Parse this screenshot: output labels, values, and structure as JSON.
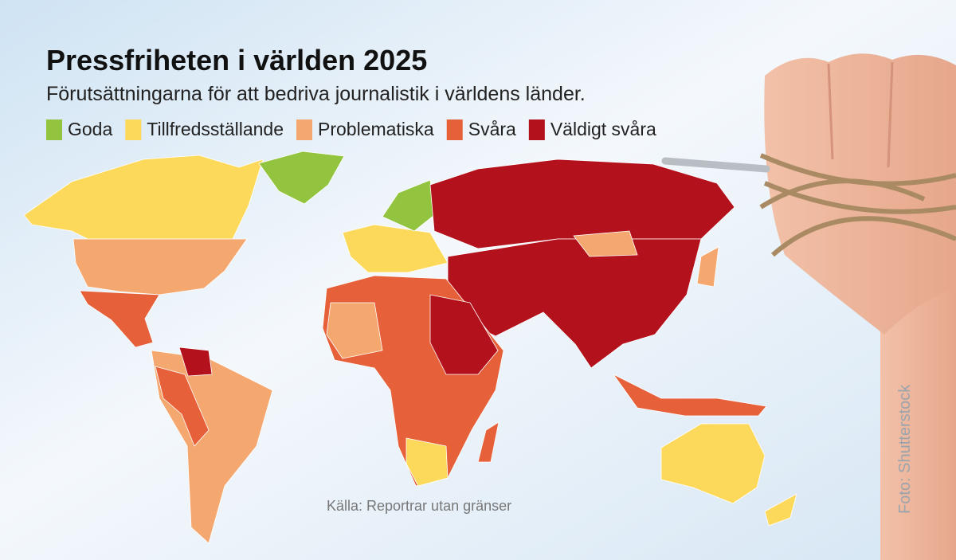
{
  "header": {
    "title": "Pressfriheten i världen 2025",
    "subtitle": "Förutsättningarna för att bedriva journalistik i världens länder."
  },
  "legend": [
    {
      "label": "Goda",
      "color": "#92c43f"
    },
    {
      "label": "Tillfredsställande",
      "color": "#fcd95a"
    },
    {
      "label": "Problematiska",
      "color": "#f4a870"
    },
    {
      "label": "Svåra",
      "color": "#e6603a"
    },
    {
      "label": "Väldigt svåra",
      "color": "#b3121c"
    }
  ],
  "source": "Källa: Reportrar utan gränser",
  "photo_credit": "Foto: Shutterstock"
}
